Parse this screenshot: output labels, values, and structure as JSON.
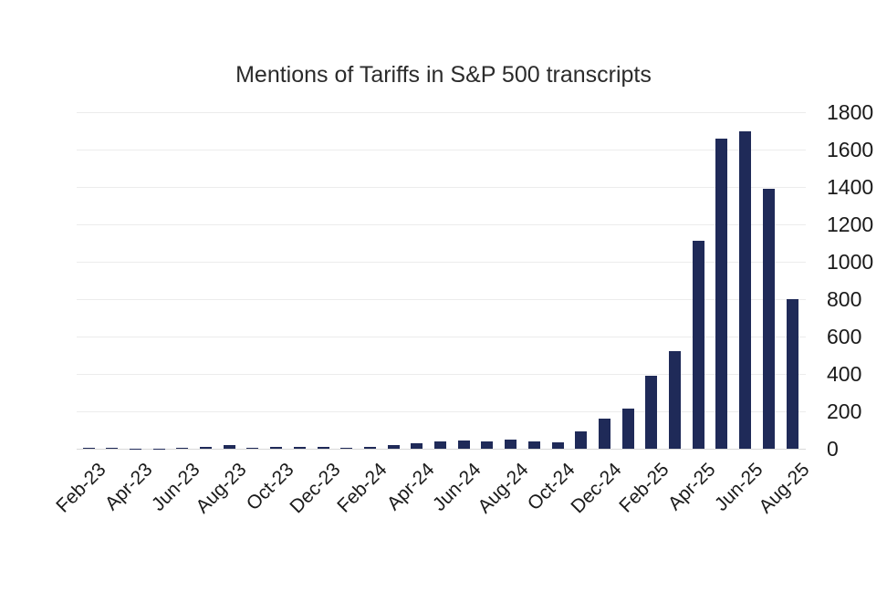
{
  "title": "Mentions of Tariffs in S&P 500 transcripts",
  "chart_data": {
    "type": "bar",
    "title": "Mentions of Tariffs in S&P 500 transcripts",
    "categories": [
      "Feb-23",
      "Mar-23",
      "Apr-23",
      "May-23",
      "Jun-23",
      "Jul-23",
      "Aug-23",
      "Sep-23",
      "Oct-23",
      "Nov-23",
      "Dec-23",
      "Jan-24",
      "Feb-24",
      "Mar-24",
      "Apr-24",
      "May-24",
      "Jun-24",
      "Jul-24",
      "Aug-24",
      "Sep-24",
      "Oct-24",
      "Nov-24",
      "Dec-24",
      "Jan-25",
      "Feb-25",
      "Mar-25",
      "Apr-25",
      "May-25",
      "Jun-25",
      "Jul-25",
      "Aug-25"
    ],
    "values": [
      5,
      5,
      2,
      2,
      6,
      12,
      20,
      6,
      8,
      12,
      10,
      6,
      8,
      20,
      28,
      40,
      46,
      38,
      48,
      40,
      35,
      95,
      160,
      215,
      390,
      520,
      1110,
      1660,
      1700,
      1390,
      800
    ],
    "x_tick_labels": [
      "Feb-23",
      "Apr-23",
      "Jun-23",
      "Aug-23",
      "Oct-23",
      "Dec-23",
      "Feb-24",
      "Apr-24",
      "Jun-24",
      "Aug-24",
      "Oct-24",
      "Dec-24",
      "Feb-25",
      "Apr-25",
      "Jun-25",
      "Aug-25"
    ],
    "x_tick_every": 2,
    "y_ticks": [
      0,
      200,
      400,
      600,
      800,
      1000,
      1200,
      1400,
      1600,
      1800
    ],
    "ylim": [
      0,
      1800
    ],
    "y_axis_side": "right",
    "xlabel": "",
    "ylabel": "",
    "grid": true,
    "legend": "none",
    "bar_color": "#1f2a58",
    "gridline_color": "#ececec",
    "axis_line_color": "#d8d8d8",
    "label_rotation_deg": -45
  }
}
